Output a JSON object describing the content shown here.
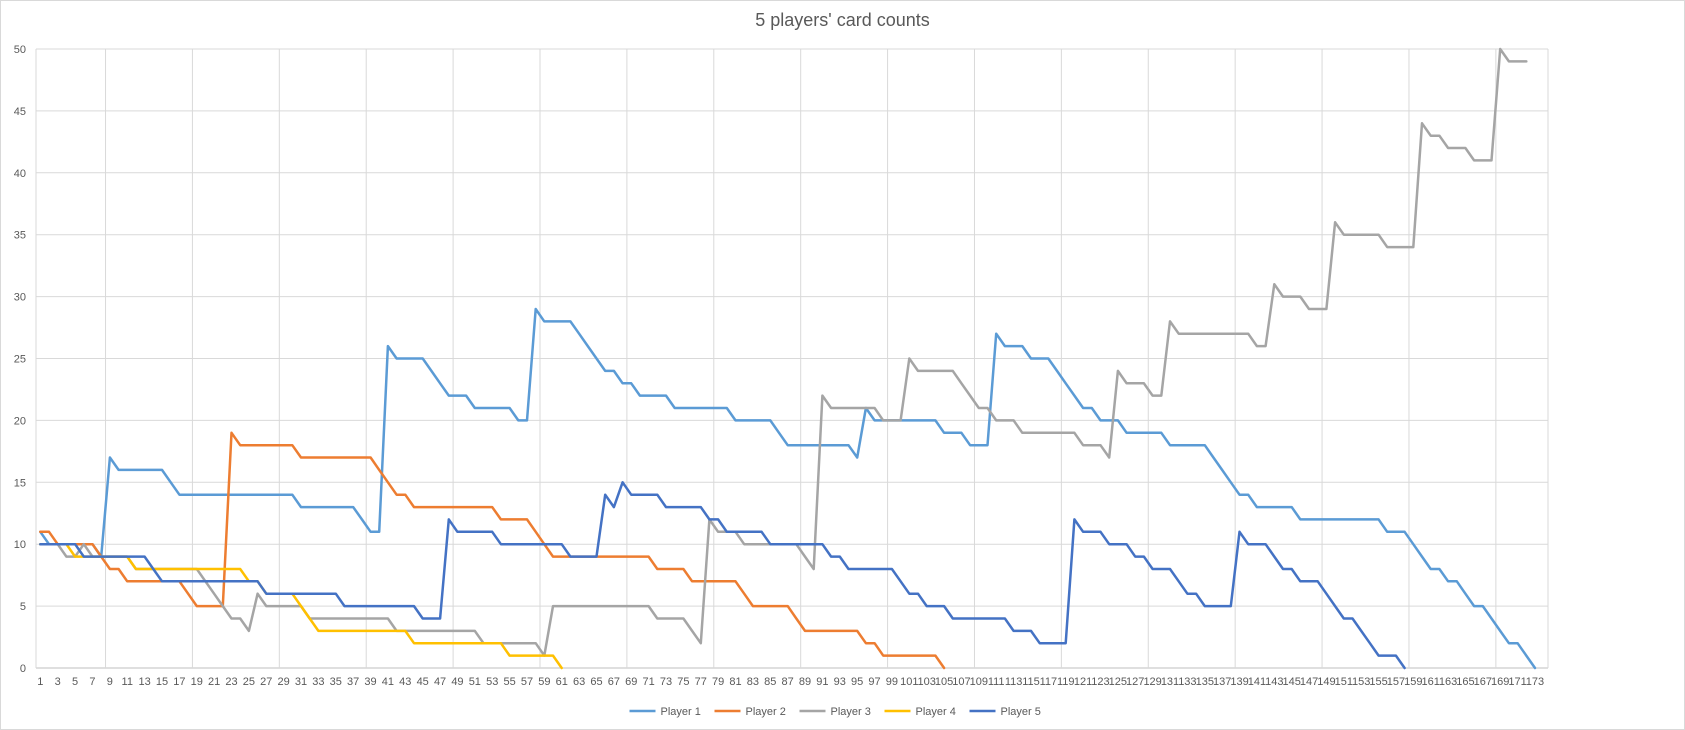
{
  "chart_data": {
    "type": "line",
    "title": "5 players' card counts",
    "xlabel": "",
    "ylabel": "",
    "ylim": [
      0,
      50
    ],
    "yticks": [
      0,
      5,
      10,
      15,
      20,
      25,
      30,
      35,
      40,
      45,
      50
    ],
    "xrange": [
      1,
      174
    ],
    "xtick_step": 2,
    "grid": true,
    "legend_position": "bottom",
    "series": [
      {
        "name": "Player 1",
        "color": "#5b9bd5",
        "points": [
          [
            1,
            11
          ],
          [
            2,
            10
          ],
          [
            7,
            10
          ],
          [
            8,
            9
          ],
          [
            9,
            17
          ],
          [
            10,
            16
          ],
          [
            15,
            16
          ],
          [
            16,
            15
          ],
          [
            17,
            14
          ],
          [
            30,
            14
          ],
          [
            31,
            13
          ],
          [
            37,
            13
          ],
          [
            38,
            12
          ],
          [
            39,
            11
          ],
          [
            40,
            11
          ],
          [
            41,
            26
          ],
          [
            42,
            25
          ],
          [
            45,
            25
          ],
          [
            46,
            24
          ],
          [
            47,
            23
          ],
          [
            48,
            22
          ],
          [
            50,
            22
          ],
          [
            51,
            21
          ],
          [
            55,
            21
          ],
          [
            56,
            20
          ],
          [
            57,
            20
          ],
          [
            58,
            29
          ],
          [
            59,
            28
          ],
          [
            62,
            28
          ],
          [
            63,
            27
          ],
          [
            64,
            26
          ],
          [
            65,
            25
          ],
          [
            66,
            24
          ],
          [
            67,
            24
          ],
          [
            68,
            23
          ],
          [
            69,
            23
          ],
          [
            70,
            22
          ],
          [
            73,
            22
          ],
          [
            74,
            21
          ],
          [
            80,
            21
          ],
          [
            81,
            20
          ],
          [
            85,
            20
          ],
          [
            86,
            19
          ],
          [
            87,
            18
          ],
          [
            94,
            18
          ],
          [
            95,
            17
          ],
          [
            96,
            21
          ],
          [
            97,
            20
          ],
          [
            104,
            20
          ],
          [
            105,
            19
          ],
          [
            107,
            19
          ],
          [
            108,
            18
          ],
          [
            110,
            18
          ],
          [
            111,
            27
          ],
          [
            112,
            26
          ],
          [
            114,
            26
          ],
          [
            115,
            25
          ],
          [
            117,
            25
          ],
          [
            118,
            24
          ],
          [
            119,
            23
          ],
          [
            120,
            22
          ],
          [
            121,
            21
          ],
          [
            122,
            21
          ],
          [
            123,
            20
          ],
          [
            125,
            20
          ],
          [
            126,
            19
          ],
          [
            130,
            19
          ],
          [
            131,
            18
          ],
          [
            135,
            18
          ],
          [
            136,
            17
          ],
          [
            137,
            16
          ],
          [
            138,
            15
          ],
          [
            139,
            14
          ],
          [
            140,
            14
          ],
          [
            141,
            13
          ],
          [
            145,
            13
          ],
          [
            146,
            12
          ],
          [
            155,
            12
          ],
          [
            156,
            11
          ],
          [
            158,
            11
          ],
          [
            159,
            10
          ],
          [
            160,
            9
          ],
          [
            161,
            8
          ],
          [
            162,
            8
          ],
          [
            163,
            7
          ],
          [
            164,
            7
          ],
          [
            165,
            6
          ],
          [
            166,
            5
          ],
          [
            167,
            5
          ],
          [
            168,
            4
          ],
          [
            169,
            3
          ],
          [
            170,
            2
          ],
          [
            171,
            2
          ],
          [
            172,
            1
          ],
          [
            173,
            0
          ]
        ]
      },
      {
        "name": "Player 2",
        "color": "#ed7d31",
        "points": [
          [
            1,
            11
          ],
          [
            2,
            11
          ],
          [
            3,
            10
          ],
          [
            7,
            10
          ],
          [
            8,
            9
          ],
          [
            9,
            8
          ],
          [
            10,
            8
          ],
          [
            11,
            7
          ],
          [
            17,
            7
          ],
          [
            18,
            6
          ],
          [
            19,
            5
          ],
          [
            22,
            5
          ],
          [
            23,
            19
          ],
          [
            24,
            18
          ],
          [
            30,
            18
          ],
          [
            31,
            17
          ],
          [
            39,
            17
          ],
          [
            40,
            16
          ],
          [
            41,
            15
          ],
          [
            42,
            14
          ],
          [
            43,
            14
          ],
          [
            44,
            13
          ],
          [
            53,
            13
          ],
          [
            54,
            12
          ],
          [
            57,
            12
          ],
          [
            58,
            11
          ],
          [
            59,
            10
          ],
          [
            60,
            9
          ],
          [
            71,
            9
          ],
          [
            72,
            8
          ],
          [
            75,
            8
          ],
          [
            76,
            7
          ],
          [
            81,
            7
          ],
          [
            82,
            6
          ],
          [
            83,
            5
          ],
          [
            87,
            5
          ],
          [
            88,
            4
          ],
          [
            89,
            3
          ],
          [
            95,
            3
          ],
          [
            96,
            2
          ],
          [
            97,
            2
          ],
          [
            98,
            1
          ],
          [
            103,
            1
          ],
          [
            104,
            1
          ],
          [
            105,
            0
          ]
        ]
      },
      {
        "name": "Player 3",
        "color": "#a5a5a5",
        "points": [
          [
            1,
            10
          ],
          [
            3,
            10
          ],
          [
            4,
            9
          ],
          [
            5,
            9
          ],
          [
            6,
            10
          ],
          [
            7,
            9
          ],
          [
            11,
            9
          ],
          [
            12,
            8
          ],
          [
            19,
            8
          ],
          [
            20,
            7
          ],
          [
            21,
            6
          ],
          [
            22,
            5
          ],
          [
            23,
            4
          ],
          [
            24,
            4
          ],
          [
            25,
            3
          ],
          [
            26,
            6
          ],
          [
            27,
            5
          ],
          [
            31,
            5
          ],
          [
            32,
            4
          ],
          [
            41,
            4
          ],
          [
            42,
            3
          ],
          [
            51,
            3
          ],
          [
            52,
            2
          ],
          [
            58,
            2
          ],
          [
            59,
            1
          ],
          [
            60,
            5
          ],
          [
            71,
            5
          ],
          [
            72,
            4
          ],
          [
            75,
            4
          ],
          [
            76,
            3
          ],
          [
            77,
            2
          ],
          [
            78,
            12
          ],
          [
            79,
            11
          ],
          [
            81,
            11
          ],
          [
            82,
            10
          ],
          [
            88,
            10
          ],
          [
            89,
            9
          ],
          [
            90,
            8
          ],
          [
            91,
            22
          ],
          [
            92,
            21
          ],
          [
            97,
            21
          ],
          [
            98,
            20
          ],
          [
            100,
            20
          ],
          [
            101,
            25
          ],
          [
            102,
            24
          ],
          [
            106,
            24
          ],
          [
            107,
            23
          ],
          [
            108,
            22
          ],
          [
            109,
            21
          ],
          [
            110,
            21
          ],
          [
            111,
            20
          ],
          [
            113,
            20
          ],
          [
            114,
            19
          ],
          [
            120,
            19
          ],
          [
            121,
            18
          ],
          [
            123,
            18
          ],
          [
            124,
            17
          ],
          [
            125,
            24
          ],
          [
            126,
            23
          ],
          [
            128,
            23
          ],
          [
            129,
            22
          ],
          [
            130,
            22
          ],
          [
            131,
            28
          ],
          [
            132,
            27
          ],
          [
            140,
            27
          ],
          [
            141,
            26
          ],
          [
            142,
            26
          ],
          [
            143,
            31
          ],
          [
            144,
            30
          ],
          [
            146,
            30
          ],
          [
            147,
            29
          ],
          [
            149,
            29
          ],
          [
            150,
            36
          ],
          [
            151,
            35
          ],
          [
            155,
            35
          ],
          [
            156,
            34
          ],
          [
            159,
            34
          ],
          [
            160,
            44
          ],
          [
            161,
            43
          ],
          [
            162,
            43
          ],
          [
            163,
            42
          ],
          [
            165,
            42
          ],
          [
            166,
            41
          ],
          [
            168,
            41
          ],
          [
            169,
            50
          ],
          [
            170,
            49
          ],
          [
            172,
            49
          ]
        ]
      },
      {
        "name": "Player 4",
        "color": "#ffc000",
        "points": [
          [
            1,
            10
          ],
          [
            3,
            10
          ],
          [
            4,
            10
          ],
          [
            5,
            9
          ],
          [
            11,
            9
          ],
          [
            12,
            8
          ],
          [
            24,
            8
          ],
          [
            25,
            7
          ],
          [
            26,
            7
          ],
          [
            27,
            6
          ],
          [
            29,
            6
          ],
          [
            30,
            6
          ],
          [
            31,
            5
          ],
          [
            32,
            4
          ],
          [
            33,
            3
          ],
          [
            43,
            3
          ],
          [
            44,
            2
          ],
          [
            54,
            2
          ],
          [
            55,
            1
          ],
          [
            60,
            1
          ],
          [
            61,
            0
          ]
        ]
      },
      {
        "name": "Player 5",
        "color": "#4472c4",
        "points": [
          [
            1,
            10
          ],
          [
            5,
            10
          ],
          [
            6,
            9
          ],
          [
            7,
            9
          ],
          [
            8,
            9
          ],
          [
            13,
            9
          ],
          [
            14,
            8
          ],
          [
            15,
            7
          ],
          [
            26,
            7
          ],
          [
            27,
            6
          ],
          [
            35,
            6
          ],
          [
            36,
            5
          ],
          [
            44,
            5
          ],
          [
            45,
            4
          ],
          [
            47,
            4
          ],
          [
            48,
            12
          ],
          [
            49,
            11
          ],
          [
            53,
            11
          ],
          [
            54,
            10
          ],
          [
            61,
            10
          ],
          [
            62,
            9
          ],
          [
            65,
            9
          ],
          [
            66,
            14
          ],
          [
            67,
            13
          ],
          [
            68,
            15
          ],
          [
            69,
            14
          ],
          [
            72,
            14
          ],
          [
            73,
            13
          ],
          [
            77,
            13
          ],
          [
            78,
            12
          ],
          [
            79,
            12
          ],
          [
            80,
            11
          ],
          [
            84,
            11
          ],
          [
            85,
            10
          ],
          [
            91,
            10
          ],
          [
            92,
            9
          ],
          [
            93,
            9
          ],
          [
            94,
            8
          ],
          [
            99,
            8
          ],
          [
            100,
            7
          ],
          [
            101,
            6
          ],
          [
            102,
            6
          ],
          [
            103,
            5
          ],
          [
            105,
            5
          ],
          [
            106,
            4
          ],
          [
            112,
            4
          ],
          [
            113,
            3
          ],
          [
            115,
            3
          ],
          [
            116,
            2
          ],
          [
            119,
            2
          ],
          [
            120,
            12
          ],
          [
            121,
            11
          ],
          [
            123,
            11
          ],
          [
            124,
            10
          ],
          [
            126,
            10
          ],
          [
            127,
            9
          ],
          [
            128,
            9
          ],
          [
            129,
            8
          ],
          [
            131,
            8
          ],
          [
            132,
            7
          ],
          [
            133,
            6
          ],
          [
            134,
            6
          ],
          [
            135,
            5
          ],
          [
            138,
            5
          ],
          [
            139,
            11
          ],
          [
            140,
            10
          ],
          [
            142,
            10
          ],
          [
            143,
            9
          ],
          [
            144,
            8
          ],
          [
            145,
            8
          ],
          [
            146,
            7
          ],
          [
            148,
            7
          ],
          [
            149,
            6
          ],
          [
            150,
            5
          ],
          [
            151,
            4
          ],
          [
            152,
            4
          ],
          [
            153,
            3
          ],
          [
            154,
            2
          ],
          [
            155,
            1
          ],
          [
            157,
            1
          ],
          [
            158,
            0
          ]
        ]
      }
    ]
  }
}
